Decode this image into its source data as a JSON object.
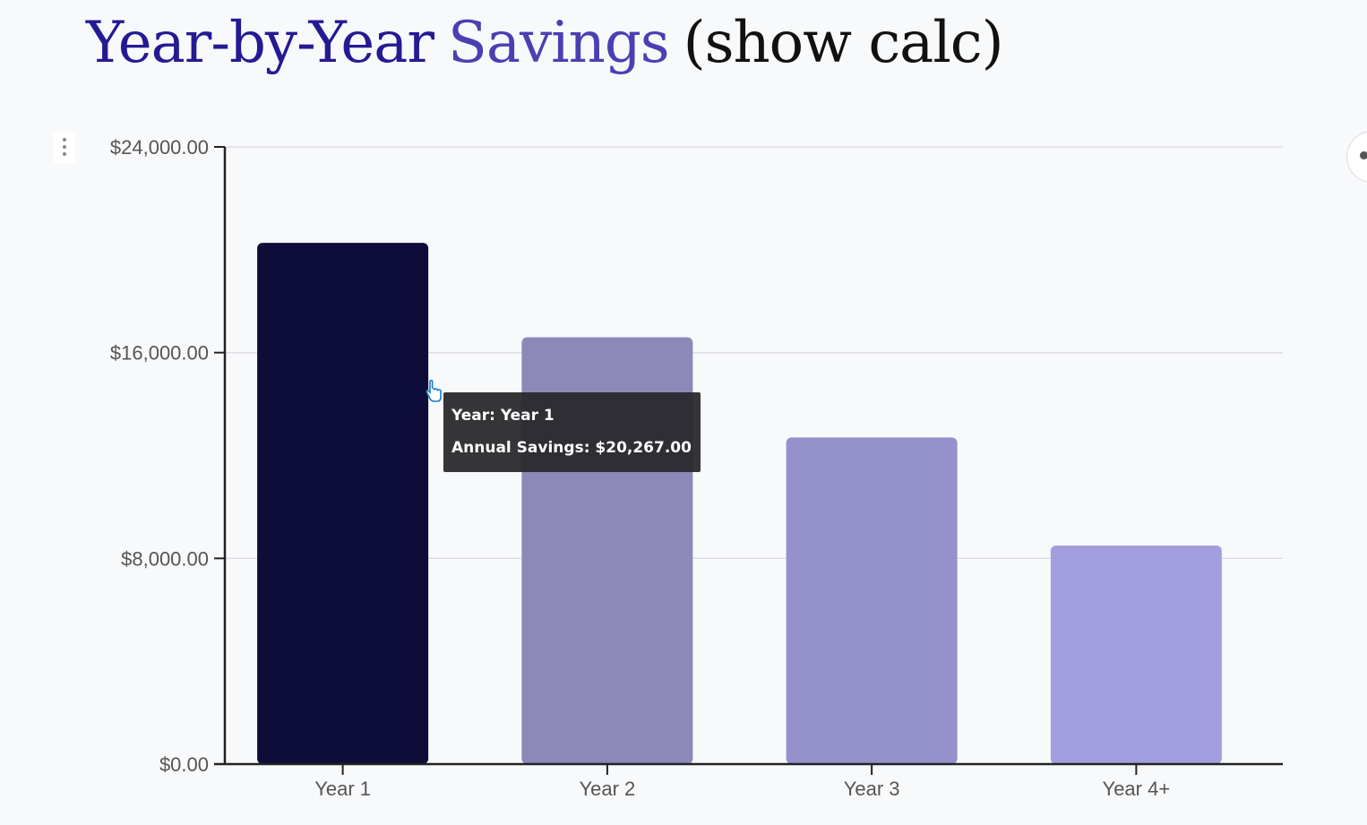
{
  "heading": {
    "part1": "Year-by-Year",
    "part2": "Savings",
    "part3": "(show calc)"
  },
  "colors": {
    "heading_part1": "#241a94",
    "heading_part2": "#4a3fb3",
    "bar_year1": "#0e0c38",
    "bar_year2": "#8c88b8",
    "bar_year3": "#9591cc",
    "bar_year4": "#a29ee0",
    "gridline": "#d8d8de",
    "axis": "#222222"
  },
  "icons": {
    "chart_menu": "vertical-dots-icon",
    "side_button": "chat-bubble-icon",
    "cursor": "hand-pointer-icon"
  },
  "chart_data": {
    "type": "bar",
    "categories": [
      "Year 1",
      "Year 2",
      "Year 3",
      "Year 4+"
    ],
    "values": [
      20267,
      16600,
      12700,
      8500
    ],
    "ylim": [
      0,
      24000
    ],
    "yticks": [
      0,
      8000,
      16000,
      24000
    ],
    "ytick_labels": [
      "$0.00",
      "$8,000.00",
      "$16,000.00",
      "$24,000.00"
    ],
    "grid": true,
    "highlighted_index": 0
  },
  "tooltip": {
    "year_line": "Year: Year 1",
    "savings_line": "Annual Savings: $20,267.00"
  }
}
